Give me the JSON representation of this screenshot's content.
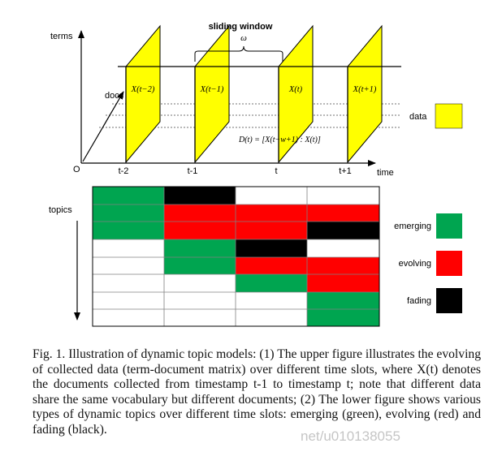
{
  "colors": {
    "slice_fill": "#ffff00",
    "green": "#00a550",
    "red": "#ff0000",
    "black": "#000000",
    "white": "#ffffff",
    "grid": "#808080"
  },
  "upper": {
    "terms_label": "terms",
    "docs_label": "docs",
    "origin_label": "O",
    "time_label": "time",
    "sliding_window_label": "sliding window",
    "omega_label": "ω",
    "time_ticks": [
      "t-2",
      "t-1",
      "t",
      "t+1"
    ],
    "slices": [
      {
        "label": "X(t−2)"
      },
      {
        "label": "X(t−1)"
      },
      {
        "label": "X(t)"
      },
      {
        "label": "X(t+1)"
      }
    ],
    "formula": "D(t) = [X(t−w+1) : X(t)]",
    "legend_data": "data"
  },
  "lower": {
    "topics_label": "topics",
    "legend": [
      {
        "label": "emerging",
        "color": "#00a550"
      },
      {
        "label": "evolving",
        "color": "#ff0000"
      },
      {
        "label": "fading",
        "color": "#000000"
      }
    ]
  },
  "caption": {
    "text": "Fig. 1.   Illustration of dynamic topic models: (1) The upper figure illustrates the evolving of collected data (term-document matrix) over different time slots, where X(t) denotes the documents collected from timestamp t-1 to timestamp t; note that different data share the same vocabulary but different documents; (2) The lower figure shows various types of dynamic topics over different time slots: emerging (green), evolving (red) and fading (black)."
  },
  "watermark": "net/u010138055"
}
